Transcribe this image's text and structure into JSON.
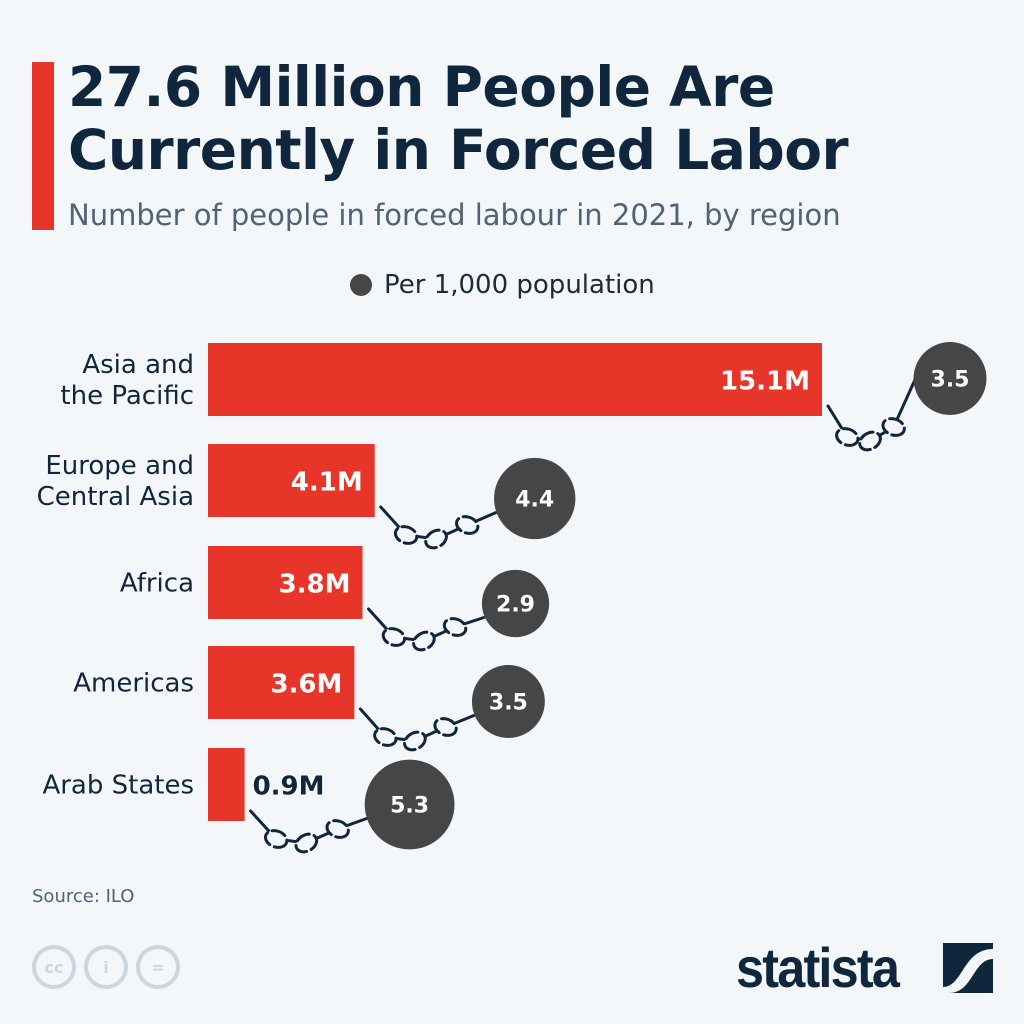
{
  "title_line1": "27.6 Million People Are",
  "title_line2": "Currently in Forced Labor",
  "subtitle": "Number of people in forced labour in 2021, by region",
  "source": "Source: ILO",
  "logo": "statista",
  "colors": {
    "bar": "#e8352a",
    "circle": "#464646",
    "chain": "#10263d",
    "text": "#10263d"
  },
  "icons": [
    "cc-icon",
    "attribution-icon",
    "no-derivatives-icon",
    "chain-icon"
  ],
  "chart_data": {
    "type": "bar",
    "orientation": "horizontal",
    "categories": [
      [
        "Asia and",
        "the Pacific"
      ],
      [
        "Europe and",
        "Central Asia"
      ],
      [
        "Africa"
      ],
      [
        "Americas"
      ],
      [
        "Arab States"
      ]
    ],
    "series": [
      {
        "values": [
          15.1,
          4.1,
          3.8,
          3.6,
          0.9
        ],
        "labels": [
          "15.1M",
          "4.1M",
          "3.8M",
          "3.6M",
          "0.9M"
        ],
        "unit": "million"
      },
      {
        "name": "Per 1,000 population",
        "values": [
          3.5,
          4.4,
          2.9,
          3.5,
          5.3
        ],
        "labels": [
          "3.5",
          "4.4",
          "2.9",
          "3.5",
          "5.3"
        ]
      }
    ],
    "legend": {
      "label": "Per 1,000 population",
      "placement": "top"
    },
    "grid": false
  }
}
